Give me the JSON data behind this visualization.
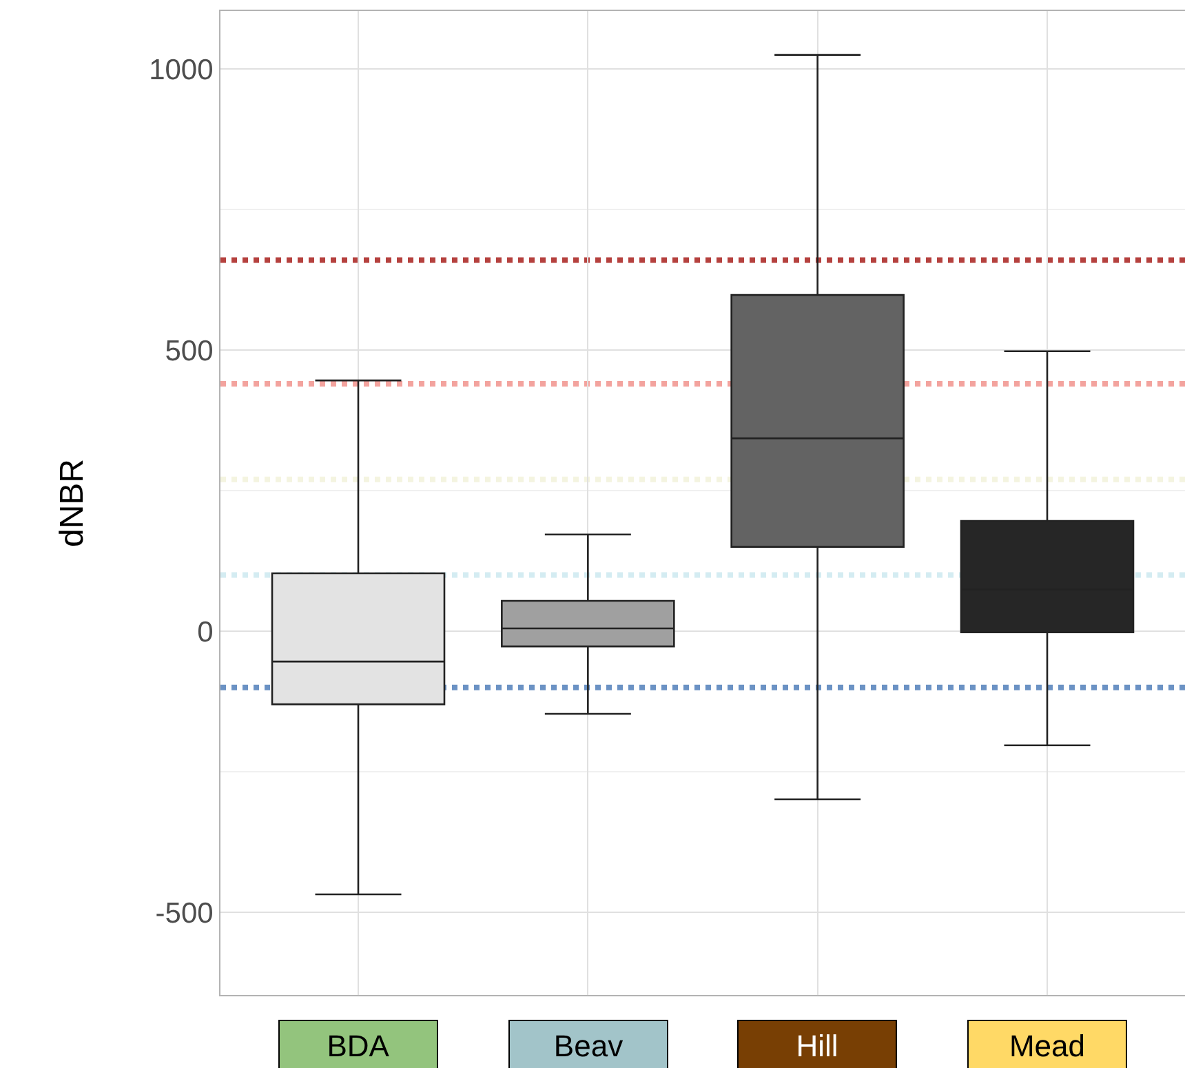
{
  "chart_data": {
    "type": "box",
    "ylabel": "dNBR",
    "categories": [
      "BDA",
      "Beav",
      "Hill",
      "Mead"
    ],
    "colors": [
      "#e3e3e3",
      "#a0a0a0",
      "#636363",
      "#262626"
    ],
    "boxes": [
      {
        "low": -468,
        "q1": -130,
        "median": -54,
        "q3": 103,
        "high": 446
      },
      {
        "low": -147,
        "q1": -27,
        "median": 5,
        "q3": 54,
        "high": 172
      },
      {
        "low": -299,
        "q1": 150,
        "median": 343,
        "q3": 598,
        "high": 1025
      },
      {
        "low": -203,
        "q1": -2,
        "median": 74,
        "q3": 196,
        "high": 498
      }
    ],
    "ylim": [
      -647,
      1103
    ],
    "yticks": [
      -500,
      0,
      500,
      1000
    ],
    "ref_lines": [
      {
        "axis": "y",
        "value": 660,
        "color": "#b5413e",
        "line_style": "dotted"
      },
      {
        "axis": "y",
        "value": 440,
        "color": "#f3a39e",
        "line_style": "dotted"
      },
      {
        "axis": "y",
        "value": 270,
        "color": "#f4f4e0",
        "line_style": "dotted"
      },
      {
        "axis": "y",
        "value": 100,
        "color": "#d4ecf2",
        "line_style": "dotted"
      },
      {
        "axis": "y",
        "value": -100,
        "color": "#6b92c4",
        "line_style": "dotted"
      }
    ],
    "grid": true,
    "legend": false
  }
}
